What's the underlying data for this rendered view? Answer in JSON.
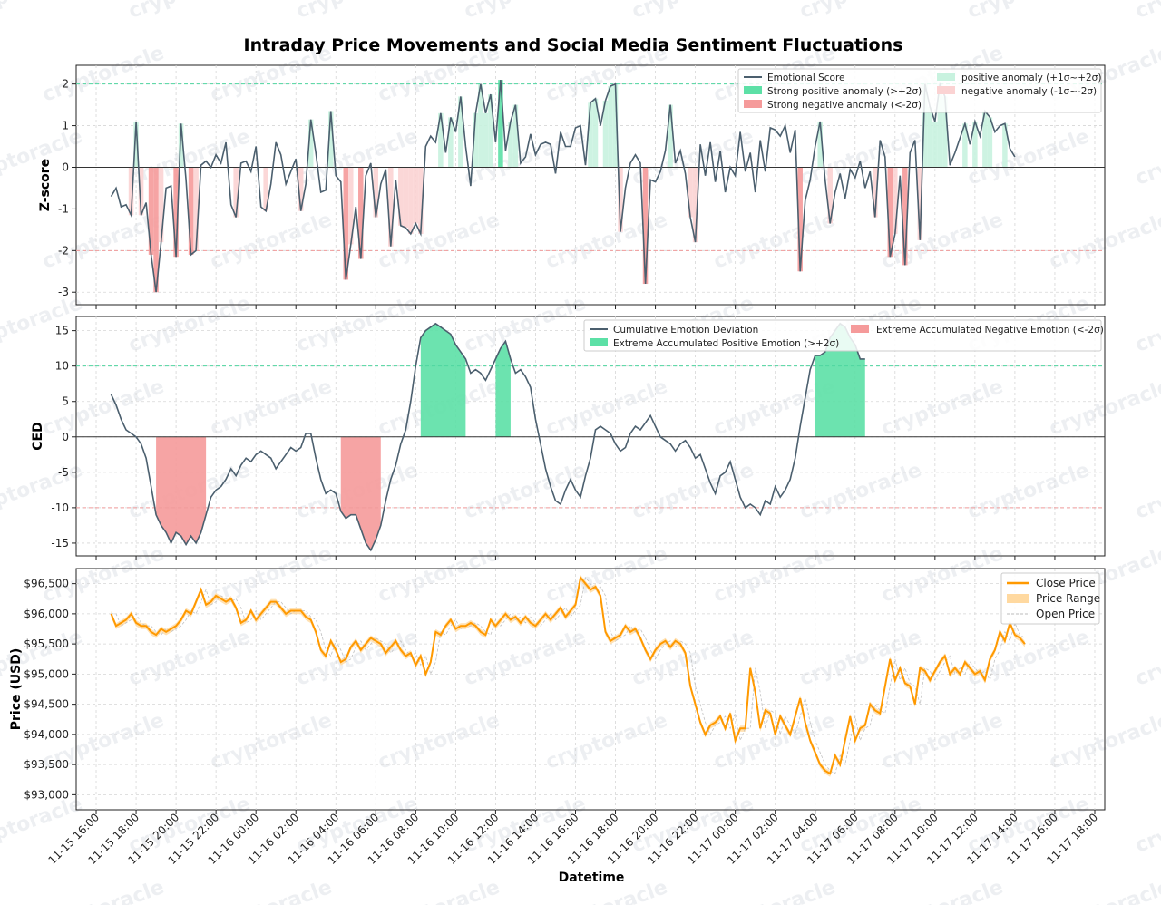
{
  "watermark": "cryptoracle",
  "chart_data": {
    "title": "Intraday Price Movements and Social Media Sentiment Fluctuations",
    "xlabel": "Datetime",
    "x_ticks": [
      "11-15 16:00",
      "11-15 18:00",
      "11-15 20:00",
      "11-15 22:00",
      "11-16 00:00",
      "11-16 02:00",
      "11-16 04:00",
      "11-16 06:00",
      "11-16 08:00",
      "11-16 10:00",
      "11-16 12:00",
      "11-16 14:00",
      "11-16 16:00",
      "11-16 18:00",
      "11-16 20:00",
      "11-16 22:00",
      "11-17 00:00",
      "11-17 02:00",
      "11-17 04:00",
      "11-17 06:00",
      "11-17 08:00",
      "11-17 10:00",
      "11-17 12:00",
      "11-17 14:00",
      "11-17 16:00",
      "11-17 18:00"
    ],
    "x_range_hours": [
      -1,
      50.5
    ],
    "panels": [
      {
        "type": "line",
        "ylabel": "Z-score",
        "ylim": [
          -3.3,
          2.45
        ],
        "yticks": [
          -3,
          -2,
          -1,
          0,
          1,
          2
        ],
        "threshold_lines": [
          2,
          -2
        ],
        "series_name": "Emotional Score",
        "x_start_hour": 0.75,
        "x_step_hours": 0.25,
        "values": [
          -0.7,
          -0.5,
          -0.95,
          -0.9,
          -1.15,
          1.1,
          -1.15,
          -0.85,
          -2.1,
          -3.0,
          -1.8,
          -0.5,
          -0.45,
          -2.15,
          1.05,
          -0.3,
          -2.1,
          -2.0,
          0.05,
          0.15,
          0.0,
          0.3,
          0.1,
          0.6,
          -0.9,
          -1.2,
          0.1,
          0.15,
          -0.1,
          0.5,
          -0.95,
          -1.05,
          -0.4,
          0.6,
          0.3,
          -0.4,
          -0.1,
          0.2,
          -1.05,
          -0.4,
          1.15,
          0.35,
          -0.6,
          -0.55,
          1.35,
          -0.2,
          -0.35,
          -2.7,
          -1.85,
          -0.95,
          -2.2,
          -0.2,
          0.1,
          -1.2,
          -0.4,
          -0.05,
          -1.9,
          -0.3,
          -1.4,
          -1.45,
          -1.6,
          -1.35,
          -1.6,
          0.5,
          0.75,
          0.6,
          1.3,
          0.35,
          1.2,
          0.85,
          1.7,
          0.5,
          -0.45,
          1.3,
          2.0,
          1.3,
          1.75,
          0.6,
          2.1,
          0.4,
          1.1,
          1.5,
          0.1,
          0.25,
          0.8,
          0.3,
          0.55,
          0.6,
          0.55,
          -0.15,
          0.85,
          0.5,
          0.5,
          0.95,
          1.0,
          0.05,
          1.55,
          1.65,
          1.0,
          1.6,
          1.95,
          2.0,
          -1.55,
          -0.5,
          0.1,
          0.3,
          0.1,
          -2.8,
          -0.3,
          -0.35,
          -0.1,
          0.4,
          1.5,
          0.1,
          0.4,
          -0.15,
          -1.2,
          -1.8,
          0.55,
          -0.2,
          0.6,
          -0.35,
          0.4,
          -0.6,
          0.0,
          -0.2,
          0.85,
          -0.1,
          0.35,
          -0.6,
          0.65,
          -0.1,
          0.95,
          0.9,
          0.75,
          1.0,
          0.35,
          0.9,
          -2.5,
          -0.8,
          -0.3,
          0.5,
          1.1,
          -0.3,
          -1.35,
          -0.6,
          -0.15,
          -0.75,
          -0.05,
          -0.25,
          0.15,
          -0.5,
          -0.1,
          -1.2,
          0.65,
          0.25,
          -2.15,
          -1.6,
          -0.2,
          -2.35,
          0.35,
          0.65,
          -1.75,
          2.0,
          1.45,
          1.1,
          2.0,
          1.7,
          0.05,
          0.35,
          0.7,
          1.05,
          0.55,
          1.1,
          0.75,
          1.35,
          1.2,
          0.85,
          1.0,
          1.05,
          0.45,
          0.25
        ],
        "legend": {
          "line": "Emotional Score",
          "strong_positive": "Strong positive anomaly (>+2σ)",
          "strong_negative": "Strong negative anomaly (<-2σ)",
          "positive": "positive anomaly (+1σ~+2σ)",
          "negative": "negative anomaly (-1σ~-2σ)"
        }
      },
      {
        "type": "line",
        "ylabel": "CED",
        "ylim": [
          -16.8,
          17.0
        ],
        "yticks": [
          -15,
          -10,
          -5,
          0,
          5,
          10,
          15
        ],
        "threshold_lines": [
          10,
          -10
        ],
        "series_name": "Cumulative Emotion Deviation",
        "x_start_hour": 0.75,
        "x_step_hours": 0.25,
        "values": [
          6.0,
          4.5,
          2.5,
          1.0,
          0.5,
          0.0,
          -1.0,
          -3.0,
          -7.0,
          -11.0,
          -12.5,
          -13.5,
          -15.0,
          -13.5,
          -14.0,
          -15.2,
          -14.0,
          -15.0,
          -13.5,
          -11.0,
          -8.5,
          -7.5,
          -7.0,
          -6.0,
          -4.5,
          -5.5,
          -4.0,
          -3.0,
          -3.5,
          -2.5,
          -2.0,
          -2.5,
          -3.0,
          -4.5,
          -3.5,
          -2.5,
          -1.5,
          -2.0,
          -1.5,
          0.5,
          0.5,
          -3.0,
          -6.0,
          -8.0,
          -7.5,
          -8.0,
          -10.5,
          -11.5,
          -11.0,
          -11.0,
          -13.0,
          -15.0,
          -16.0,
          -14.5,
          -12.5,
          -9.0,
          -6.0,
          -4.0,
          -1.0,
          1.0,
          5.0,
          10.0,
          14.0,
          15.0,
          15.5,
          16.0,
          15.5,
          15.0,
          14.5,
          13.0,
          12.0,
          11.0,
          9.0,
          9.5,
          9.0,
          8.0,
          9.5,
          11.0,
          12.5,
          13.5,
          11.0,
          9.0,
          9.5,
          8.5,
          7.0,
          2.5,
          -1.0,
          -4.5,
          -7.0,
          -9.0,
          -9.5,
          -7.5,
          -6.0,
          -7.5,
          -8.5,
          -5.5,
          -3.0,
          1.0,
          1.5,
          1.0,
          0.5,
          -1.0,
          -2.0,
          -1.5,
          0.5,
          1.5,
          1.0,
          2.0,
          3.0,
          1.5,
          0.0,
          -0.5,
          -1.0,
          -2.0,
          -1.0,
          -0.5,
          -1.5,
          -3.0,
          -2.5,
          -4.5,
          -6.5,
          -8.0,
          -5.5,
          -5.0,
          -3.5,
          -6.0,
          -8.5,
          -10.0,
          -9.5,
          -10.0,
          -11.0,
          -9.0,
          -9.5,
          -7.0,
          -8.5,
          -7.5,
          -6.0,
          -3.0,
          1.5,
          5.5,
          9.5,
          11.5,
          11.5,
          12.0,
          14.0,
          15.0,
          16.0,
          15.5,
          14.0,
          13.0,
          11.0,
          11.0
        ],
        "legend": {
          "line": "Cumulative Emotion Deviation",
          "extreme_positive": "Extreme Accumulated Positive Emotion (>+2σ)",
          "extreme_negative": "Extreme Accumulated Negative Emotion (<-2σ)"
        }
      },
      {
        "type": "line",
        "ylabel": "Price (USD)",
        "ylim": [
          92750,
          96750
        ],
        "ytick_values": [
          93000,
          93500,
          94000,
          94500,
          95000,
          95500,
          96000,
          96500
        ],
        "ytick_labels": [
          "$93,000",
          "$93,500",
          "$94,000",
          "$94,500",
          "$95,000",
          "$95,500",
          "$96,000",
          "$96,500"
        ],
        "series_name": "Close Price",
        "x_start_hour": 0.75,
        "x_step_hours": 0.25,
        "values": [
          96000,
          95800,
          95850,
          95900,
          96000,
          95850,
          95800,
          95800,
          95700,
          95650,
          95750,
          95700,
          95750,
          95800,
          95900,
          96050,
          96000,
          96200,
          96400,
          96150,
          96200,
          96300,
          96250,
          96200,
          96250,
          96100,
          95850,
          95900,
          96050,
          95900,
          96000,
          96100,
          96200,
          96200,
          96100,
          96000,
          96050,
          96050,
          96050,
          95950,
          95900,
          95700,
          95400,
          95300,
          95550,
          95400,
          95200,
          95250,
          95450,
          95550,
          95400,
          95500,
          95600,
          95550,
          95500,
          95350,
          95450,
          95550,
          95400,
          95300,
          95350,
          95150,
          95300,
          95000,
          95200,
          95700,
          95650,
          95800,
          95900,
          95750,
          95800,
          95800,
          95850,
          95800,
          95700,
          95650,
          95900,
          95800,
          95900,
          96000,
          95900,
          95950,
          95850,
          95950,
          95850,
          95800,
          95900,
          96000,
          95900,
          96000,
          96100,
          95950,
          96050,
          96150,
          96600,
          96500,
          96400,
          96450,
          96300,
          95700,
          95550,
          95600,
          95650,
          95800,
          95700,
          95750,
          95600,
          95400,
          95250,
          95400,
          95500,
          95550,
          95450,
          95550,
          95500,
          95350,
          94800,
          94500,
          94200,
          94000,
          94150,
          94200,
          94300,
          94100,
          94350,
          93900,
          94100,
          94100,
          95100,
          94700,
          94100,
          94400,
          94350,
          94000,
          94300,
          94150,
          94000,
          94300,
          94600,
          94200,
          93900,
          93700,
          93500,
          93400,
          93350,
          93650,
          93500,
          93900,
          94300,
          93900,
          94100,
          94150,
          94500,
          94400,
          94350,
          94800,
          95250,
          94900,
          95100,
          94850,
          94800,
          94500,
          95100,
          95050,
          94900,
          95050,
          95200,
          95300,
          95000,
          95100,
          95000,
          95200,
          95100,
          95000,
          95050,
          94900,
          95250,
          95400,
          95700,
          95550,
          95850,
          95650,
          95600,
          95500
        ],
        "legend": {
          "close": "Close Price",
          "range": "Price Range",
          "open": "Open Price"
        }
      }
    ],
    "colors": {
      "line": "#4b5f6e",
      "price": "#ff9900",
      "price_range": "#ffd9a0",
      "strong_pos": "#5ce0a6",
      "strong_neg": "#f59a9a",
      "weak_pos": "#c8f2df",
      "weak_neg": "#fbd3d3",
      "pos_threshold": "#4fd6a0",
      "neg_threshold": "#f09a9a"
    }
  }
}
